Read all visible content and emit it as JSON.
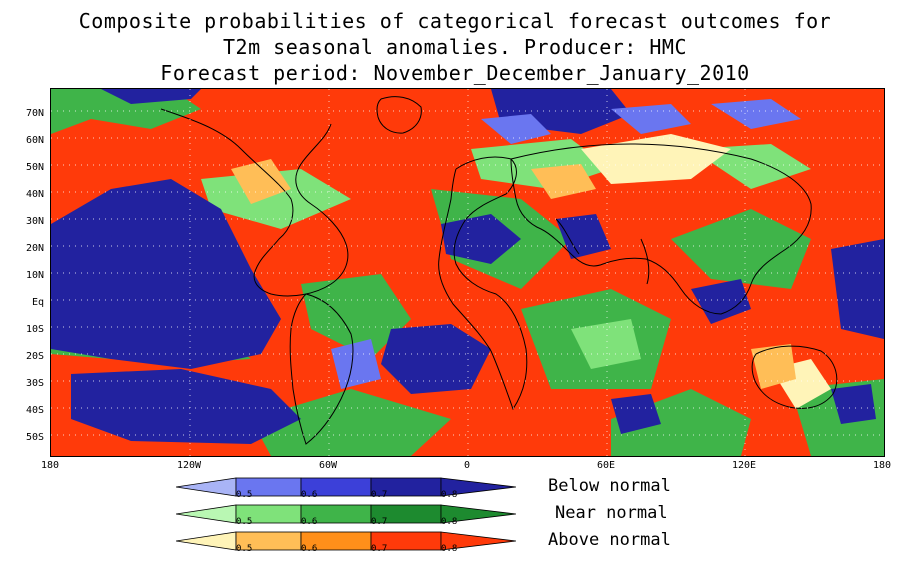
{
  "title": {
    "line1": "Composite probabilities of categorical forecast outcomes for",
    "line2": "T2m seasonal anomalies. Producer: HMC",
    "line3": "Forecast period:  November_December_January_2010"
  },
  "map": {
    "lat_ticks": [
      "70N",
      "60N",
      "50N",
      "40N",
      "30N",
      "20N",
      "10N",
      "Eq",
      "10S",
      "20S",
      "30S",
      "40S",
      "50S"
    ],
    "lon_ticks": [
      "180",
      "120W",
      "60W",
      "0",
      "60E",
      "120E",
      "180"
    ],
    "colors": {
      "below": [
        "#a9b4f6",
        "#6a76f0",
        "#3c40d9",
        "#22229f"
      ],
      "near": [
        "#b9f7b3",
        "#7fe27a",
        "#3fb449",
        "#1d8a2f"
      ],
      "above": [
        "#fff4b8",
        "#ffbe57",
        "#ff8f1a",
        "#ff3a0a"
      ],
      "land_outline": "#000000",
      "grid": "#ffffff"
    }
  },
  "legend": {
    "ticks": [
      "0.5",
      "0.6",
      "0.7",
      "0.8"
    ],
    "below_label": "Below normal",
    "near_label": "Near normal",
    "above_label": "Above normal"
  }
}
